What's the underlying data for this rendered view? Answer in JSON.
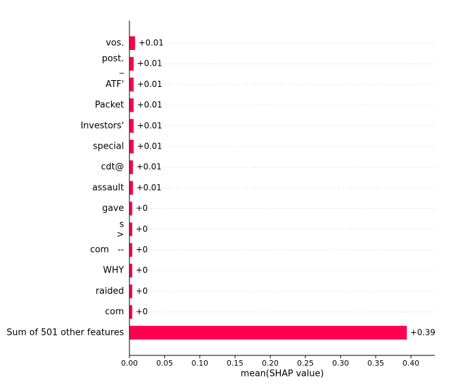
{
  "chart_data": {
    "type": "bar",
    "orientation": "horizontal",
    "xlabel": "mean(SHAP value)",
    "categories": [
      "vos.",
      "post.\n_",
      "ATF'",
      "Packet",
      "Investors'",
      "special",
      "cdt@",
      "assault",
      "gave",
      "s\n>",
      "com   --",
      "WHY",
      "raided",
      "com",
      "Sum of 501 other features"
    ],
    "values": [
      0.008,
      0.006,
      0.006,
      0.006,
      0.006,
      0.006,
      0.005,
      0.005,
      0.004,
      0.004,
      0.004,
      0.004,
      0.004,
      0.004,
      0.394
    ],
    "value_labels": [
      "+0.01",
      "+0.01",
      "+0.01",
      "+0.01",
      "+0.01",
      "+0.01",
      "+0.01",
      "+0.01",
      "+0",
      "+0",
      "+0",
      "+0",
      "+0",
      "+0",
      "+0.39"
    ],
    "color": "#ff0051",
    "xlim": [
      0,
      0.434
    ],
    "xticks": [
      {
        "value": 0,
        "label": "0.00"
      },
      {
        "value": 0.05,
        "label": "0.05"
      },
      {
        "value": 0.1,
        "label": "0.10"
      },
      {
        "value": 0.15,
        "label": "0.15"
      },
      {
        "value": 0.2,
        "label": "0.20"
      },
      {
        "value": 0.25,
        "label": "0.25"
      },
      {
        "value": 0.3,
        "label": "0.30"
      },
      {
        "value": 0.35,
        "label": "0.35"
      },
      {
        "value": 0.4,
        "label": "0.40"
      }
    ]
  }
}
